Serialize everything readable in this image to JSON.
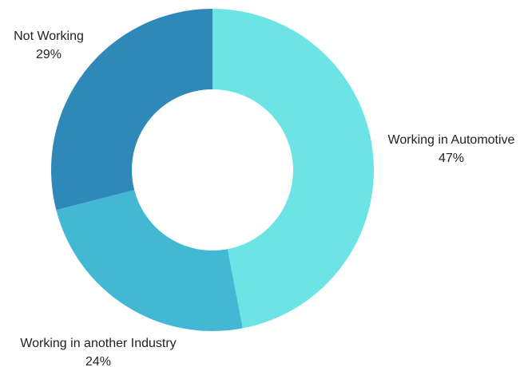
{
  "chart_data": {
    "type": "pie",
    "variant": "donut",
    "title": "",
    "slices": [
      {
        "label": "Working in Automotive",
        "value": 47,
        "display": "47%",
        "color": "#6ce4e6"
      },
      {
        "label": "Working in another Industry",
        "value": 24,
        "display": "24%",
        "color": "#43b8d5"
      },
      {
        "label": "Not Working",
        "value": 29,
        "display": "29%",
        "color": "#2e88b8"
      }
    ],
    "start_angle_deg": 0,
    "direction": "clockwise",
    "legend": "none",
    "data_labels": "outside"
  }
}
